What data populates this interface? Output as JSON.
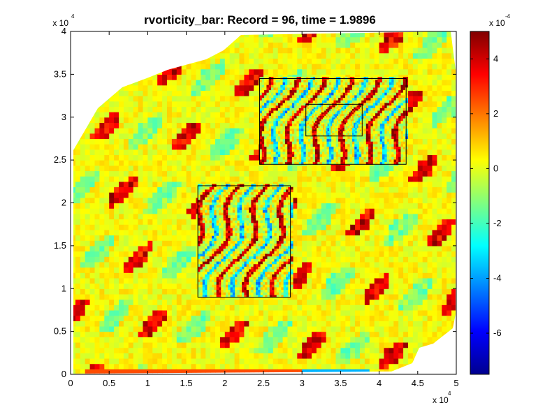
{
  "chart_data": [
    {
      "type": "heatmap",
      "title": "rvorticity_bar:    Record = 96,    time = 1.9896",
      "xlabel": "",
      "ylabel": "",
      "x_multiplier_label": "x 10",
      "x_multiplier_exponent": "4",
      "y_multiplier_label": "x 10",
      "y_multiplier_exponent": "4",
      "xlim": [
        0,
        5
      ],
      "ylim": [
        0,
        4
      ],
      "x_ticks": [
        0,
        0.5,
        1,
        1.5,
        2,
        2.5,
        3,
        3.5,
        4,
        4.5,
        5
      ],
      "x_tick_labels": [
        "0",
        "0.5",
        "1",
        "1.5",
        "2",
        "2.5",
        "3",
        "3.5",
        "4",
        "4.5",
        "5"
      ],
      "y_ticks": [
        0,
        0.5,
        1,
        1.5,
        2,
        2.5,
        3,
        3.5,
        4
      ],
      "y_tick_labels": [
        "0",
        "0.5",
        "1",
        "1.5",
        "2",
        "2.5",
        "3",
        "3.5",
        "4"
      ],
      "grid": false,
      "colormap": "jet",
      "nested_boxes": [
        {
          "x": [
            1.65,
            2.85
          ],
          "y": [
            0.9,
            2.2
          ]
        },
        {
          "x": [
            2.45,
            4.35
          ],
          "y": [
            2.45,
            3.45
          ]
        },
        {
          "x": [
            3.05,
            3.78
          ],
          "y": [
            2.78,
            3.15
          ]
        }
      ]
    },
    {
      "type": "colorbar",
      "multiplier_label": "x 10",
      "multiplier_exponent": "-4",
      "clim": [
        -7.5,
        5
      ],
      "ticks": [
        -6,
        -4,
        -2,
        0,
        2,
        4
      ],
      "tick_labels": [
        "-6",
        "-4",
        "-2",
        "0",
        "2",
        "4"
      ]
    }
  ],
  "colors": {
    "jet_dark_blue": "#00008f",
    "jet_blue": "#0000ff",
    "jet_cyan": "#00ffff",
    "jet_yellow": "#ffff00",
    "jet_red": "#ff0000",
    "jet_dark_red": "#800000",
    "axes": "#000000",
    "background": "#ffffff"
  }
}
